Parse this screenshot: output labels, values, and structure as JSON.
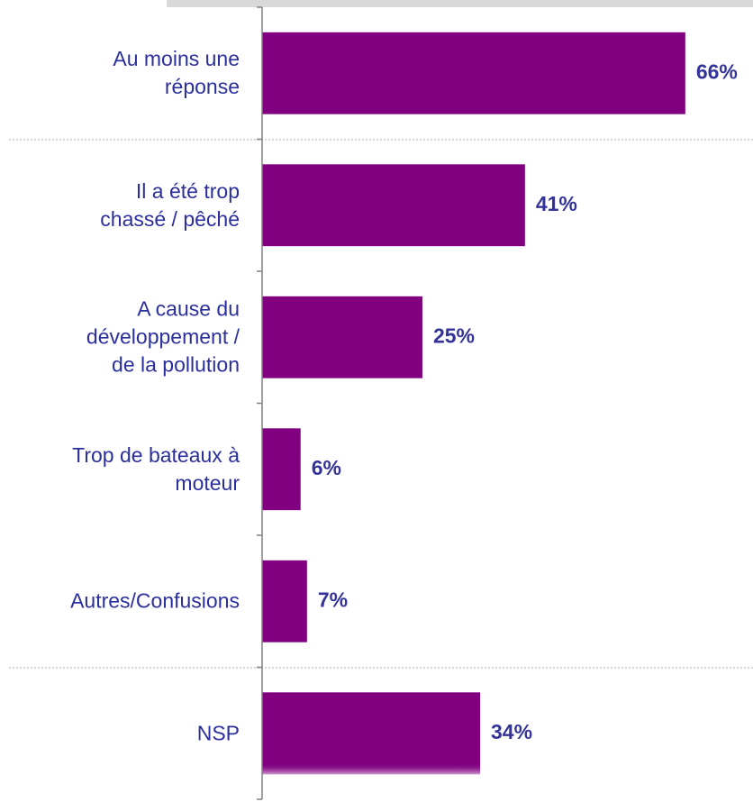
{
  "chart_data": {
    "type": "bar",
    "orientation": "horizontal",
    "categories": [
      "Au moins une\nréponse",
      "Il a été trop\nchassé / pêché",
      "A cause du\ndéveloppement /\nde la pollution",
      "Trop de bateaux à\nmoteur",
      "Autres/Confusions",
      "NSP"
    ],
    "values": [
      66,
      41,
      25,
      6,
      7,
      34
    ],
    "value_labels": [
      "66%",
      "41%",
      "25%",
      "6%",
      "7%",
      "34%"
    ],
    "color": "#800080",
    "xlim": [
      0,
      76
    ]
  }
}
